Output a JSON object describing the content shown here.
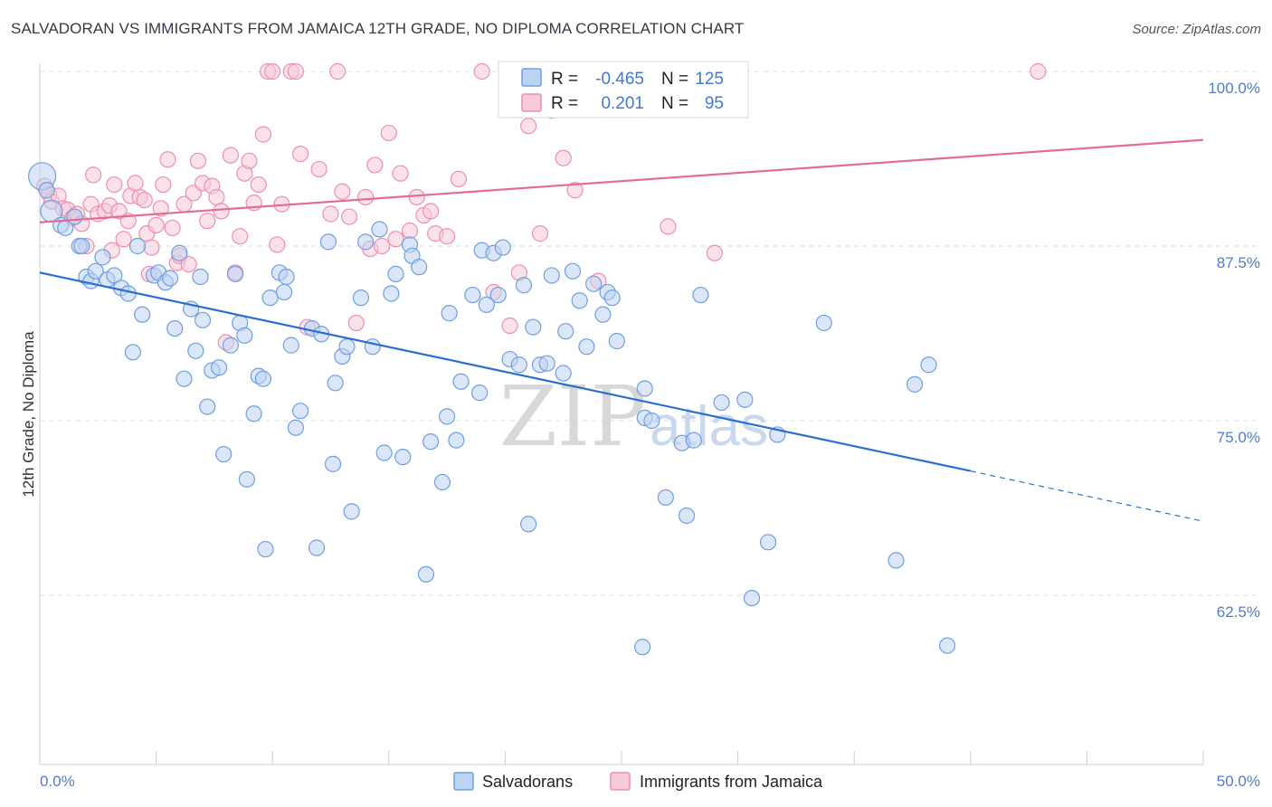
{
  "title": "SALVADORAN VS IMMIGRANTS FROM JAMAICA 12TH GRADE, NO DIPLOMA CORRELATION CHART",
  "source": "Source: ZipAtlas.com",
  "watermark": {
    "part1": "ZIP",
    "part2": "atlas"
  },
  "colors": {
    "blue": "#6f9fe0",
    "blue_fill": "#bdd3f3",
    "blue_line": "#2a6fd0",
    "pink": "#ee8fae",
    "pink_fill": "#f7cbd9",
    "pink_line": "#e46b95",
    "grid": "#d9dde4"
  },
  "legend": {
    "rows": [
      {
        "r_label": "R =",
        "r_value": "-0.465",
        "n_label": "N =",
        "n_value": "125"
      },
      {
        "r_label": "R =",
        "r_value": "0.201",
        "n_label": "N =",
        "n_value": "95"
      }
    ]
  },
  "bottom_legend": [
    "Salvadorans",
    "Immigrants from Jamaica"
  ],
  "chart_data": {
    "type": "scatter",
    "title": "SALVADORAN VS IMMIGRANTS FROM JAMAICA 12TH GRADE, NO DIPLOMA CORRELATION CHART",
    "xlabel": "",
    "ylabel": "12th Grade, No Diploma",
    "xlim": [
      0,
      50
    ],
    "ylim": [
      50,
      101
    ],
    "x_tick_labels": [
      "0.0%",
      "50.0%"
    ],
    "y_ticks": [
      100,
      87.5,
      75,
      62.5
    ],
    "y_tick_labels": [
      "100.0%",
      "87.5%",
      "75.0%",
      "62.5%"
    ],
    "grid": true,
    "legend_position": "top-center",
    "series": [
      {
        "name": "Salvadorans",
        "color": "#6f9fe0",
        "trend": {
          "x0": 0,
          "y0": 85.6,
          "x1": 40,
          "y1": 71.4,
          "dash_to_x": 50,
          "dash_to_y": 67.8
        },
        "points": [
          [
            0.1,
            92.5
          ],
          [
            0.3,
            91.5
          ],
          [
            0.5,
            90
          ],
          [
            0.9,
            89
          ],
          [
            1.1,
            88.8
          ],
          [
            1.5,
            89.6
          ],
          [
            1.7,
            87.5
          ],
          [
            1.8,
            87.5
          ],
          [
            2.0,
            85.3
          ],
          [
            2.2,
            85
          ],
          [
            2.4,
            85.7
          ],
          [
            2.7,
            86.7
          ],
          [
            2.9,
            85.1
          ],
          [
            3.2,
            85.4
          ],
          [
            3.5,
            84.5
          ],
          [
            3.8,
            84.1
          ],
          [
            4.0,
            79.9
          ],
          [
            4.2,
            87.5
          ],
          [
            4.4,
            82.6
          ],
          [
            4.9,
            85.4
          ],
          [
            5.1,
            85.6
          ],
          [
            5.4,
            84.9
          ],
          [
            5.6,
            85.2
          ],
          [
            5.8,
            81.6
          ],
          [
            6.0,
            87.0
          ],
          [
            6.2,
            78.0
          ],
          [
            6.5,
            83.0
          ],
          [
            6.7,
            80.0
          ],
          [
            6.9,
            85.3
          ],
          [
            7.0,
            82.2
          ],
          [
            7.2,
            76.0
          ],
          [
            7.4,
            78.6
          ],
          [
            7.7,
            78.8
          ],
          [
            7.9,
            72.6
          ],
          [
            8.2,
            80.4
          ],
          [
            8.4,
            85.5
          ],
          [
            8.6,
            82.0
          ],
          [
            8.8,
            81.1
          ],
          [
            8.9,
            70.8
          ],
          [
            9.2,
            75.5
          ],
          [
            9.4,
            78.2
          ],
          [
            9.6,
            78.0
          ],
          [
            9.7,
            65.8
          ],
          [
            9.9,
            83.8
          ],
          [
            10.3,
            85.6
          ],
          [
            10.5,
            84.2
          ],
          [
            10.6,
            85.3
          ],
          [
            10.8,
            80.4
          ],
          [
            11.0,
            74.5
          ],
          [
            11.2,
            75.7
          ],
          [
            11.7,
            81.6
          ],
          [
            11.9,
            65.9
          ],
          [
            12.1,
            81.2
          ],
          [
            12.4,
            87.8
          ],
          [
            12.6,
            71.9
          ],
          [
            12.7,
            77.7
          ],
          [
            13.0,
            79.6
          ],
          [
            13.2,
            80.3
          ],
          [
            13.4,
            68.5
          ],
          [
            13.8,
            83.8
          ],
          [
            14.0,
            87.8
          ],
          [
            14.3,
            80.3
          ],
          [
            14.6,
            88.7
          ],
          [
            14.8,
            72.7
          ],
          [
            15.1,
            84.1
          ],
          [
            15.3,
            85.5
          ],
          [
            15.6,
            72.4
          ],
          [
            15.9,
            87.6
          ],
          [
            16.0,
            86.8
          ],
          [
            16.3,
            86.0
          ],
          [
            16.6,
            64.0
          ],
          [
            16.8,
            73.5
          ],
          [
            17.3,
            70.6
          ],
          [
            17.5,
            75.3
          ],
          [
            17.6,
            82.7
          ],
          [
            17.9,
            73.6
          ],
          [
            18.1,
            77.8
          ],
          [
            18.6,
            84.0
          ],
          [
            18.9,
            77.0
          ],
          [
            19.2,
            83.3
          ],
          [
            19.0,
            87.2
          ],
          [
            19.5,
            87.0
          ],
          [
            19.7,
            84.0
          ],
          [
            19.9,
            87.4
          ],
          [
            20.2,
            79.4
          ],
          [
            20.6,
            79.0
          ],
          [
            20.8,
            84.7
          ],
          [
            21.0,
            67.6
          ],
          [
            21.2,
            81.7
          ],
          [
            21.5,
            79.0
          ],
          [
            21.8,
            79.1
          ],
          [
            22.0,
            85.4
          ],
          [
            22.5,
            78.4
          ],
          [
            22.6,
            81.4
          ],
          [
            22.9,
            85.7
          ],
          [
            23.2,
            83.6
          ],
          [
            23.5,
            80.3
          ],
          [
            23.8,
            84.8
          ],
          [
            24.2,
            82.6
          ],
          [
            24.4,
            84.2
          ],
          [
            24.6,
            83.8
          ],
          [
            24.8,
            80.7
          ],
          [
            25.0,
            100
          ],
          [
            25.9,
            58.8
          ],
          [
            25.5,
            100
          ],
          [
            26.0,
            77.3
          ],
          [
            26.0,
            75.2
          ],
          [
            26.3,
            75.0
          ],
          [
            26.9,
            69.5
          ],
          [
            27.6,
            73.4
          ],
          [
            27.8,
            68.2
          ],
          [
            28.1,
            73.6
          ],
          [
            28.4,
            84.0
          ],
          [
            29.3,
            76.3
          ],
          [
            30.3,
            76.5
          ],
          [
            30.6,
            62.3
          ],
          [
            31.3,
            66.3
          ],
          [
            31.7,
            74.0
          ],
          [
            33.7,
            82.0
          ],
          [
            36.8,
            65.0
          ],
          [
            37.6,
            77.6
          ],
          [
            38.2,
            79.0
          ],
          [
            39.0,
            58.9
          ]
        ]
      },
      {
        "name": "Immigrants from Jamaica",
        "color": "#ee8fae",
        "trend": {
          "x0": 0,
          "y0": 89.2,
          "x1": 50,
          "y1": 95.1
        },
        "points": [
          [
            0.2,
            91.8
          ],
          [
            0.4,
            91.2
          ],
          [
            0.5,
            90.7
          ],
          [
            0.8,
            91.1
          ],
          [
            1.0,
            90.2
          ],
          [
            1.2,
            90.1
          ],
          [
            1.4,
            89.5
          ],
          [
            1.6,
            89.8
          ],
          [
            1.8,
            89.1
          ],
          [
            2.0,
            87.5
          ],
          [
            2.2,
            90.5
          ],
          [
            2.3,
            92.6
          ],
          [
            2.5,
            89.8
          ],
          [
            2.8,
            90.0
          ],
          [
            3.0,
            90.4
          ],
          [
            3.1,
            87.2
          ],
          [
            3.2,
            91.9
          ],
          [
            3.4,
            90.0
          ],
          [
            3.6,
            88.0
          ],
          [
            3.8,
            89.3
          ],
          [
            3.9,
            91.1
          ],
          [
            4.1,
            92.0
          ],
          [
            4.3,
            91.0
          ],
          [
            4.5,
            90.8
          ],
          [
            4.6,
            88.4
          ],
          [
            4.7,
            85.5
          ],
          [
            4.8,
            87.4
          ],
          [
            5.0,
            89.0
          ],
          [
            5.2,
            90.2
          ],
          [
            5.3,
            91.9
          ],
          [
            5.5,
            93.7
          ],
          [
            5.7,
            88.8
          ],
          [
            5.9,
            86.3
          ],
          [
            6.0,
            86.8
          ],
          [
            6.2,
            90.5
          ],
          [
            6.4,
            86.2
          ],
          [
            6.6,
            91.3
          ],
          [
            6.8,
            93.6
          ],
          [
            7.0,
            92.0
          ],
          [
            7.2,
            89.3
          ],
          [
            7.4,
            91.8
          ],
          [
            7.6,
            91.0
          ],
          [
            7.8,
            90.0
          ],
          [
            8.0,
            80.6
          ],
          [
            8.2,
            94.0
          ],
          [
            8.4,
            85.6
          ],
          [
            8.6,
            88.2
          ],
          [
            8.8,
            92.7
          ],
          [
            9.0,
            93.6
          ],
          [
            9.2,
            90.6
          ],
          [
            9.4,
            91.9
          ],
          [
            9.6,
            95.5
          ],
          [
            9.8,
            100
          ],
          [
            10.0,
            100
          ],
          [
            10.2,
            87.6
          ],
          [
            10.4,
            90.5
          ],
          [
            10.8,
            100
          ],
          [
            11.0,
            100
          ],
          [
            11.2,
            94.1
          ],
          [
            11.5,
            81.7
          ],
          [
            12.0,
            93.0
          ],
          [
            12.5,
            89.8
          ],
          [
            12.8,
            100
          ],
          [
            13.0,
            91.4
          ],
          [
            13.3,
            89.6
          ],
          [
            13.6,
            82.0
          ],
          [
            14.0,
            91.0
          ],
          [
            14.2,
            87.3
          ],
          [
            14.4,
            93.3
          ],
          [
            14.7,
            87.5
          ],
          [
            15.0,
            95.6
          ],
          [
            15.3,
            88.0
          ],
          [
            15.5,
            92.7
          ],
          [
            15.9,
            88.6
          ],
          [
            16.2,
            91.0
          ],
          [
            16.5,
            89.7
          ],
          [
            16.8,
            90.0
          ],
          [
            17.0,
            88.4
          ],
          [
            17.5,
            88.2
          ],
          [
            18.0,
            92.3
          ],
          [
            19.0,
            100
          ],
          [
            19.5,
            84.2
          ],
          [
            20.2,
            81.8
          ],
          [
            20.6,
            85.6
          ],
          [
            21.0,
            96.1
          ],
          [
            21.5,
            88.4
          ],
          [
            22.0,
            97.2
          ],
          [
            22.5,
            93.8
          ],
          [
            23.0,
            91.5
          ],
          [
            24.0,
            85.0
          ],
          [
            25.0,
            97.5
          ],
          [
            25.5,
            100
          ],
          [
            26.0,
            99.0
          ],
          [
            27.0,
            88.9
          ],
          [
            29.0,
            87.0
          ],
          [
            42.9,
            100
          ]
        ]
      }
    ]
  }
}
